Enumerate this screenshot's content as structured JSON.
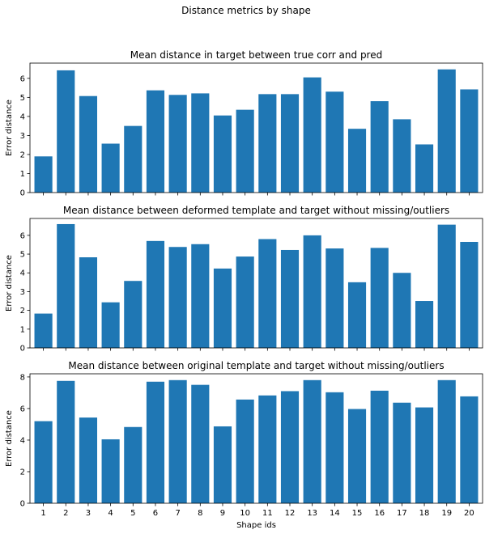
{
  "figure": {
    "suptitle": "Distance metrics by shape"
  },
  "chart_data": [
    {
      "type": "bar",
      "title": "Mean distance in target between true corr and pred",
      "xlabel": "",
      "ylabel": "Error distance",
      "categories": [
        "1",
        "2",
        "3",
        "4",
        "5",
        "6",
        "7",
        "8",
        "9",
        "10",
        "11",
        "12",
        "13",
        "14",
        "15",
        "16",
        "17",
        "18",
        "19",
        "20"
      ],
      "values": [
        1.9,
        6.42,
        5.07,
        2.57,
        3.5,
        5.37,
        5.13,
        5.21,
        4.05,
        4.35,
        5.17,
        5.17,
        6.05,
        5.3,
        3.35,
        4.8,
        3.85,
        2.53,
        6.47,
        5.42
      ],
      "ylim": [
        0,
        6.8
      ],
      "yticks": [
        0,
        1,
        2,
        3,
        4,
        5,
        6
      ],
      "show_xticklabels": false,
      "bar_color": "#1f77b4",
      "grid": false
    },
    {
      "type": "bar",
      "title": "Mean distance between deformed template and target without missing/outliers",
      "xlabel": "",
      "ylabel": "Error distance",
      "categories": [
        "1",
        "2",
        "3",
        "4",
        "5",
        "6",
        "7",
        "8",
        "9",
        "10",
        "11",
        "12",
        "13",
        "14",
        "15",
        "16",
        "17",
        "18",
        "19",
        "20"
      ],
      "values": [
        1.83,
        6.6,
        4.83,
        2.43,
        3.57,
        5.7,
        5.38,
        5.53,
        4.23,
        4.87,
        5.8,
        5.22,
        6.0,
        5.3,
        3.5,
        5.33,
        4.0,
        2.5,
        6.57,
        5.65
      ],
      "ylim": [
        0,
        6.9
      ],
      "yticks": [
        0,
        1,
        2,
        3,
        4,
        5,
        6
      ],
      "show_xticklabels": false,
      "bar_color": "#1f77b4",
      "grid": false
    },
    {
      "type": "bar",
      "title": "Mean distance between original template and target without missing/outliers",
      "xlabel": "Shape ids",
      "ylabel": "Error distance",
      "categories": [
        "1",
        "2",
        "3",
        "4",
        "5",
        "6",
        "7",
        "8",
        "9",
        "10",
        "11",
        "12",
        "13",
        "14",
        "15",
        "16",
        "17",
        "18",
        "19",
        "20"
      ],
      "values": [
        5.2,
        7.75,
        5.43,
        4.05,
        4.83,
        7.7,
        7.8,
        7.5,
        4.87,
        6.57,
        6.83,
        7.1,
        7.8,
        7.03,
        5.97,
        7.13,
        6.37,
        6.07,
        7.8,
        6.77
      ],
      "ylim": [
        0,
        8.2
      ],
      "yticks": [
        0,
        2,
        4,
        6,
        8
      ],
      "show_xticklabels": true,
      "bar_color": "#1f77b4",
      "grid": false
    }
  ]
}
